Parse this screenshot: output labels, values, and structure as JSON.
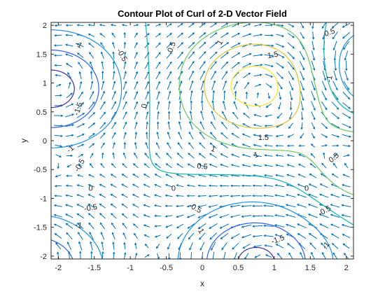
{
  "chart_data": {
    "type": "contour",
    "title": "Contour Plot of Curl of 2-D Vector Field",
    "xlabel": "x",
    "ylabel": "y",
    "xlim": [
      -2.1,
      2.1
    ],
    "ylim": [
      -2.05,
      2.05
    ],
    "xticks": [
      "-2",
      "-1.5",
      "-1",
      "-0.5",
      "0",
      "0.5",
      "1",
      "1.5",
      "2"
    ],
    "xtick_values": [
      -2,
      -1.5,
      -1,
      -0.5,
      0,
      0.5,
      1,
      1.5,
      2
    ],
    "yticks": [
      "-2",
      "-1.5",
      "-1",
      "-0.5",
      "0",
      "0.5",
      "1",
      "1.5",
      "2"
    ],
    "ytick_values": [
      -2,
      -1.5,
      -1,
      -0.5,
      0,
      0.5,
      1,
      1.5,
      2
    ],
    "contour_levels": [
      -1.5,
      -1,
      -0.5,
      0,
      0.5,
      1,
      1.5
    ],
    "contour_labels": [
      {
        "text": "-1",
        "x": -1.72,
        "y": 1.66,
        "rot": 30
      },
      {
        "text": "-0.5",
        "x": -1.12,
        "y": 1.48,
        "rot": 60
      },
      {
        "text": "-1.5",
        "x": -1.72,
        "y": 0.55,
        "rot": -70
      },
      {
        "text": "-1",
        "x": -1.83,
        "y": -0.15,
        "rot": -40
      },
      {
        "text": "-0.5",
        "x": -1.7,
        "y": -0.43,
        "rot": -60
      },
      {
        "text": "0",
        "x": -0.8,
        "y": 0.6,
        "rot": -80
      },
      {
        "text": "0.5",
        "x": -0.42,
        "y": 1.62,
        "rot": -70
      },
      {
        "text": "1",
        "x": 0.25,
        "y": 1.7,
        "rot": -60
      },
      {
        "text": "1.5",
        "x": 0.98,
        "y": 1.48,
        "rot": -10
      },
      {
        "text": "1.5",
        "x": 0.85,
        "y": 0.05,
        "rot": 0
      },
      {
        "text": "1",
        "x": 0.15,
        "y": -0.15,
        "rot": 20
      },
      {
        "text": "1",
        "x": 0.75,
        "y": -0.25,
        "rot": -20
      },
      {
        "text": "0.5",
        "x": 0.0,
        "y": -0.45,
        "rot": 5
      },
      {
        "text": "0.5",
        "x": 1.83,
        "y": -0.3,
        "rot": -40
      },
      {
        "text": "0.5",
        "x": 1.77,
        "y": 1.87,
        "rot": -20
      },
      {
        "text": "-1",
        "x": 1.77,
        "y": 1.07,
        "rot": -80
      },
      {
        "text": "0",
        "x": -1.55,
        "y": -0.83,
        "rot": 0
      },
      {
        "text": "0",
        "x": -0.4,
        "y": -0.83,
        "rot": 0
      },
      {
        "text": "0",
        "x": 1.45,
        "y": -0.83,
        "rot": 0
      },
      {
        "text": "-0.5",
        "x": -1.55,
        "y": -1.17,
        "rot": -10
      },
      {
        "text": "-1",
        "x": -1.72,
        "y": -1.47,
        "rot": 10
      },
      {
        "text": "-0.5",
        "x": -0.1,
        "y": -1.17,
        "rot": 30
      },
      {
        "text": "-1",
        "x": -0.03,
        "y": -1.55,
        "rot": 60
      },
      {
        "text": "-1.5",
        "x": 1.05,
        "y": -1.72,
        "rot": -20
      },
      {
        "text": "-0.5",
        "x": 1.7,
        "y": -1.22,
        "rot": -30
      },
      {
        "text": "-1",
        "x": 1.72,
        "y": -1.82,
        "rot": -50
      }
    ],
    "grid": false,
    "legend": "none"
  },
  "colors": {
    "axes": "#262626",
    "quiver": "#0072BD",
    "level_colors": [
      "#3E26A8",
      "#2F5CF5",
      "#1A8FE3",
      "#0FB5AE",
      "#66C95E",
      "#D9C32E",
      "#F9E426"
    ]
  }
}
